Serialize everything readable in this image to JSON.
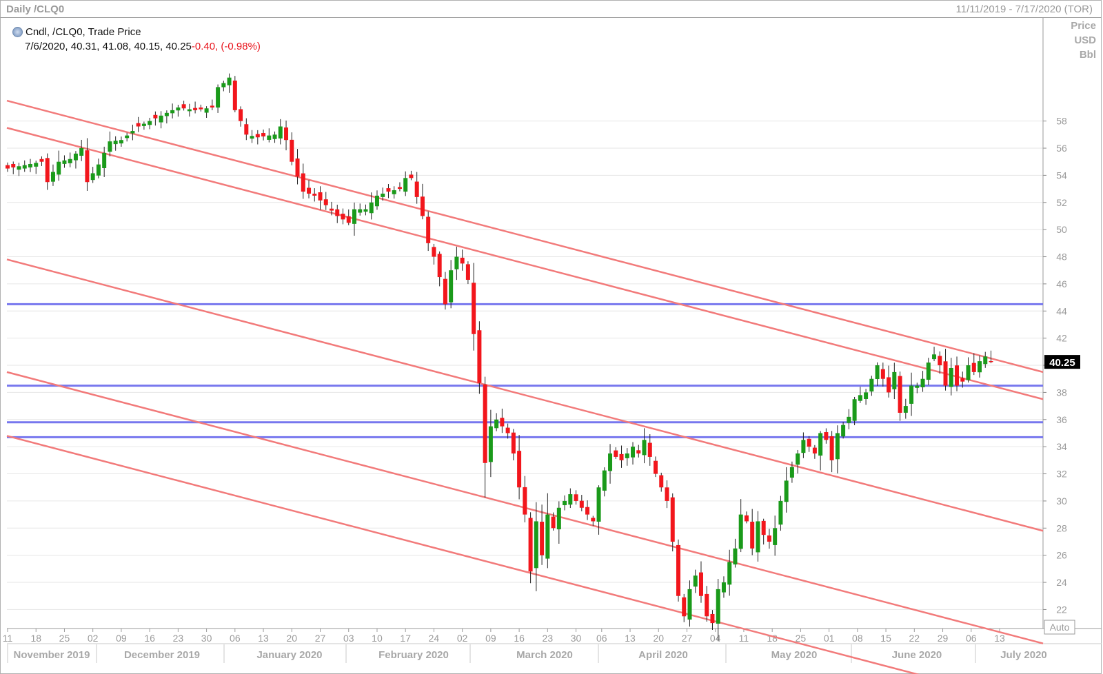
{
  "header": {
    "title": "Daily /CLQ0",
    "date_range": "11/11/2019 - 7/17/2020 (TOR)"
  },
  "legend": {
    "series_label": "Cndl, /CLQ0, Trade Price",
    "ohlc_text": "7/6/2020, 40.31, 41.08, 40.15, 40.25",
    "change_text": "-0.40, (-0.98%)"
  },
  "y_unit_labels": [
    "Price",
    "USD",
    "Bbl"
  ],
  "auto_label": "Auto",
  "last_price_label": "40.25",
  "colors": {
    "up": "#1a9a1a",
    "down": "#f2161c",
    "channel": "#f27a7a",
    "support": "#7777ee",
    "grid": "#e6e6e6"
  },
  "chart_data": {
    "type": "candlestick",
    "title": "Daily /CLQ0",
    "ylim": [
      20.6,
      65.6
    ],
    "y_ticks": [
      22,
      24,
      26,
      28,
      30,
      32,
      34,
      36,
      38,
      40,
      42,
      44,
      46,
      48,
      50,
      52,
      54,
      56,
      58
    ],
    "x_day_labels": [
      "11",
      "18",
      "25",
      "02",
      "09",
      "16",
      "23",
      "30",
      "06",
      "13",
      "20",
      "27",
      "03",
      "10",
      "17",
      "24",
      "02",
      "09",
      "16",
      "23",
      "30",
      "06",
      "13",
      "20",
      "27",
      "04",
      "11",
      "18",
      "25",
      "01",
      "08",
      "15",
      "22",
      "29",
      "06",
      "13"
    ],
    "x_month_labels": [
      "November 2019",
      "December 2019",
      "January 2020",
      "February 2020",
      "March 2020",
      "April 2020",
      "May 2020",
      "June 2020",
      "July 2020"
    ],
    "horizontal_levels": [
      44.5,
      38.5,
      35.8,
      34.7
    ],
    "channel_lines": [
      {
        "x0_index": 0,
        "y0": 59.5,
        "x1_index": 174,
        "y1": 39.5
      },
      {
        "x0_index": 0,
        "y0": 57.5,
        "x1_index": 174,
        "y1": 37.5
      },
      {
        "x0_index": 0,
        "y0": 47.8,
        "x1_index": 174,
        "y1": 27.8
      },
      {
        "x0_index": 0,
        "y0": 39.5,
        "x1_index": 174,
        "y1": 19.5
      },
      {
        "x0_index": 0,
        "y0": 34.8,
        "x1_index": 174,
        "y1": 14.8
      }
    ],
    "anchors": [
      [
        0,
        54.5
      ],
      [
        6,
        55.0
      ],
      [
        7,
        53.5
      ],
      [
        9,
        55.0
      ],
      [
        11,
        55.2
      ],
      [
        13,
        56.0
      ],
      [
        14,
        53.5
      ],
      [
        16,
        54.8
      ],
      [
        18,
        56.5
      ],
      [
        20,
        56.6
      ],
      [
        23,
        57.6
      ],
      [
        26,
        58.2
      ],
      [
        30,
        59.0
      ],
      [
        33,
        58.8
      ],
      [
        36,
        59.0
      ],
      [
        37,
        60.5
      ],
      [
        38,
        60.8
      ],
      [
        39,
        61.2
      ],
      [
        40,
        58.8
      ],
      [
        41,
        58.0
      ],
      [
        42,
        57.0
      ],
      [
        44,
        56.8
      ],
      [
        47,
        57.0
      ],
      [
        48,
        57.6
      ],
      [
        49,
        56.6
      ],
      [
        50,
        55.0
      ],
      [
        52,
        52.8
      ],
      [
        54,
        52.5
      ],
      [
        56,
        51.8
      ],
      [
        58,
        51.0
      ],
      [
        60,
        50.5
      ],
      [
        61,
        51.5
      ],
      [
        63,
        51.5
      ],
      [
        65,
        52.5
      ],
      [
        67,
        52.8
      ],
      [
        69,
        53.0
      ],
      [
        70,
        53.8
      ],
      [
        71,
        53.8
      ],
      [
        72,
        52.4
      ],
      [
        73,
        51.0
      ],
      [
        74,
        49.0
      ],
      [
        75,
        48.0
      ],
      [
        76,
        46.5
      ],
      [
        77,
        44.5
      ],
      [
        78,
        47.0
      ],
      [
        79,
        48.0
      ],
      [
        80,
        47.5
      ],
      [
        81,
        46.3
      ],
      [
        82,
        42.3
      ],
      [
        83,
        38.7
      ],
      [
        84,
        32.8
      ],
      [
        85,
        35.5
      ],
      [
        86,
        36.0
      ],
      [
        88,
        35.0
      ],
      [
        89,
        33.5
      ],
      [
        90,
        31.0
      ],
      [
        91,
        29.0
      ],
      [
        92,
        24.8
      ],
      [
        93,
        28.5
      ],
      [
        94,
        26.0
      ],
      [
        95,
        29.0
      ],
      [
        96,
        28.0
      ],
      [
        97,
        29.5
      ],
      [
        98,
        30.0
      ],
      [
        99,
        30.5
      ],
      [
        101,
        29.5
      ],
      [
        103,
        28.5
      ],
      [
        104,
        31.0
      ],
      [
        106,
        33.5
      ],
      [
        108,
        33.0
      ],
      [
        110,
        34.0
      ],
      [
        111,
        33.5
      ],
      [
        112,
        34.5
      ],
      [
        114,
        32.0
      ],
      [
        115,
        31.0
      ],
      [
        116,
        30.0
      ],
      [
        117,
        27.0
      ],
      [
        118,
        23.0
      ],
      [
        119,
        21.5
      ],
      [
        120,
        23.5
      ],
      [
        121,
        24.5
      ],
      [
        122,
        23.0
      ],
      [
        123,
        21.5
      ],
      [
        124,
        21.0
      ],
      [
        125,
        23.5
      ],
      [
        126,
        24.0
      ],
      [
        127,
        25.5
      ],
      [
        128,
        26.5
      ],
      [
        129,
        29.0
      ],
      [
        130,
        28.5
      ],
      [
        131,
        26.5
      ],
      [
        132,
        28.5
      ],
      [
        133,
        27.5
      ],
      [
        134,
        27.0
      ],
      [
        135,
        28.0
      ],
      [
        136,
        30.0
      ],
      [
        137,
        31.5
      ],
      [
        138,
        32.5
      ],
      [
        139,
        33.5
      ],
      [
        140,
        34.5
      ],
      [
        142,
        33.5
      ],
      [
        143,
        35.0
      ],
      [
        144,
        34.5
      ],
      [
        145,
        33.0
      ],
      [
        146,
        35.0
      ],
      [
        148,
        36.2
      ],
      [
        149,
        37.5
      ],
      [
        150,
        37.8
      ],
      [
        151,
        38.0
      ],
      [
        152,
        39.0
      ],
      [
        153,
        40.0
      ],
      [
        154,
        39.0
      ],
      [
        155,
        38.0
      ],
      [
        156,
        39.5
      ],
      [
        157,
        36.5
      ],
      [
        158,
        37.0
      ],
      [
        159,
        38.5
      ],
      [
        160,
        38.5
      ],
      [
        161,
        39.0
      ],
      [
        162,
        40.2
      ],
      [
        163,
        40.8
      ],
      [
        164,
        40.0
      ],
      [
        165,
        38.5
      ],
      [
        166,
        39.8
      ],
      [
        167,
        38.5
      ],
      [
        168,
        38.8
      ],
      [
        169,
        40.0
      ],
      [
        170,
        39.5
      ],
      [
        171,
        40.3
      ],
      [
        172,
        40.65
      ],
      [
        173,
        40.25
      ]
    ],
    "last_bar": {
      "date": "7/6/2020",
      "open": 40.31,
      "high": 41.08,
      "low": 40.15,
      "close": 40.25
    }
  }
}
